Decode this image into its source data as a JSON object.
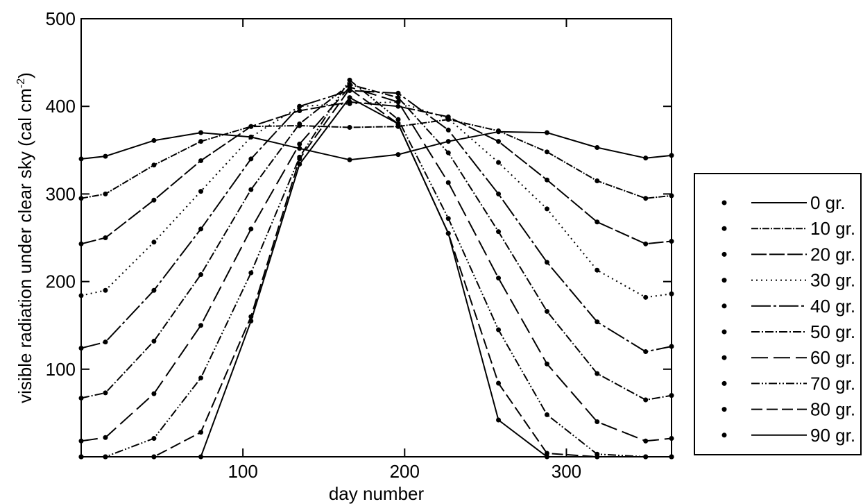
{
  "chart_data": {
    "type": "line",
    "title": "",
    "xlabel": "day number",
    "ylabel": "visible radiation under clear sky (cal cm",
    "ylabel_sup": "-2",
    "ylabel_close": ")",
    "xlim": [
      0,
      365
    ],
    "ylim": [
      0,
      500
    ],
    "xticks": [
      100,
      200,
      300
    ],
    "yticks": [
      100,
      200,
      300,
      400,
      500
    ],
    "grid": false,
    "legend_position": "right",
    "x": [
      0,
      15,
      45,
      74,
      105,
      135,
      166,
      196,
      227,
      258,
      288,
      319,
      349,
      365
    ],
    "series": [
      {
        "name": "0 gr.",
        "dash": "solid",
        "values": [
          340,
          343,
          361,
          370,
          365,
          352,
          339,
          345,
          360,
          371,
          370,
          353,
          341,
          344
        ]
      },
      {
        "name": "10 gr.",
        "dash": "10 2 2 2",
        "values": [
          295,
          300,
          333,
          360,
          377,
          378,
          376,
          377,
          385,
          372,
          348,
          315,
          295,
          298
        ]
      },
      {
        "name": "20 gr.",
        "dash": "22 4",
        "values": [
          243,
          250,
          293,
          338,
          377,
          395,
          405,
          400,
          388,
          360,
          316,
          268,
          243,
          246
        ]
      },
      {
        "name": "30 gr.",
        "dash": "2 5",
        "values": [
          184,
          190,
          245,
          303,
          365,
          400,
          403,
          405,
          386,
          336,
          283,
          213,
          182,
          186
        ]
      },
      {
        "name": "40 gr.",
        "dash": "28 4 4 4",
        "values": [
          124,
          131,
          190,
          260,
          340,
          400,
          418,
          415,
          373,
          300,
          222,
          154,
          120,
          126
        ]
      },
      {
        "name": "50 gr.",
        "dash": "12 3 2 3",
        "values": [
          67,
          73,
          132,
          208,
          305,
          380,
          425,
          410,
          347,
          257,
          166,
          95,
          65,
          70
        ]
      },
      {
        "name": "60 gr.",
        "dash": "24 8",
        "values": [
          18,
          22,
          72,
          150,
          260,
          357,
          422,
          405,
          313,
          204,
          106,
          40,
          18,
          21
        ]
      },
      {
        "name": "70 gr.",
        "dash": "12 3 2 3 2 3",
        "values": [
          0,
          0,
          21,
          90,
          210,
          342,
          430,
          385,
          272,
          145,
          48,
          3,
          0,
          0
        ]
      },
      {
        "name": "80 gr.",
        "dash": "16 6",
        "values": [
          0,
          0,
          0,
          28,
          160,
          340,
          420,
          380,
          255,
          84,
          4,
          0,
          0,
          0
        ]
      },
      {
        "name": "90 gr.",
        "dash": "solid",
        "values": [
          0,
          0,
          0,
          0,
          155,
          334,
          410,
          380,
          255,
          42,
          0,
          0,
          0,
          0
        ]
      }
    ]
  }
}
